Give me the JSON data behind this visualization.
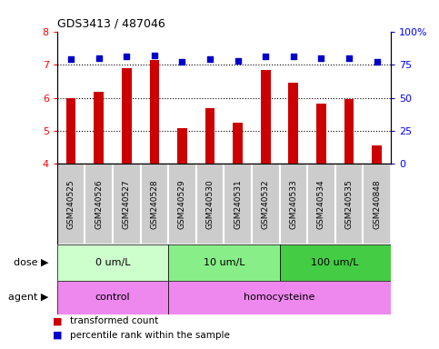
{
  "title": "GDS3413 / 487046",
  "samples": [
    "GSM240525",
    "GSM240526",
    "GSM240527",
    "GSM240528",
    "GSM240529",
    "GSM240530",
    "GSM240531",
    "GSM240532",
    "GSM240533",
    "GSM240534",
    "GSM240535",
    "GSM240848"
  ],
  "bar_values": [
    6.0,
    6.17,
    6.9,
    7.15,
    5.08,
    5.68,
    5.25,
    6.85,
    6.45,
    5.82,
    5.97,
    4.55
  ],
  "percentile_values": [
    79,
    80,
    81,
    82,
    77,
    79,
    78,
    81,
    81,
    80,
    80,
    77
  ],
  "bar_color": "#cc0000",
  "dot_color": "#0000cc",
  "ylim_left": [
    4,
    8
  ],
  "ylim_right": [
    0,
    100
  ],
  "yticks_left": [
    4,
    5,
    6,
    7,
    8
  ],
  "yticks_right": [
    0,
    25,
    50,
    75,
    100
  ],
  "ytick_labels_right": [
    "0",
    "25",
    "50",
    "75",
    "100%"
  ],
  "dose_groups": [
    {
      "label": "0 um/L",
      "start": 0,
      "end": 3,
      "color": "#ccffcc"
    },
    {
      "label": "10 um/L",
      "start": 4,
      "end": 7,
      "color": "#88ee88"
    },
    {
      "label": "100 um/L",
      "start": 8,
      "end": 11,
      "color": "#44cc44"
    }
  ],
  "agent_groups": [
    {
      "label": "control",
      "start": 0,
      "end": 3,
      "color": "#ee88ee"
    },
    {
      "label": "homocysteine",
      "start": 4,
      "end": 11,
      "color": "#ee88ee"
    }
  ],
  "dose_label": "dose",
  "agent_label": "agent",
  "legend_bar_label": "transformed count",
  "legend_dot_label": "percentile rank within the sample",
  "bar_width": 0.35,
  "sample_box_color": "#cccccc",
  "plot_bg": "#ffffff"
}
